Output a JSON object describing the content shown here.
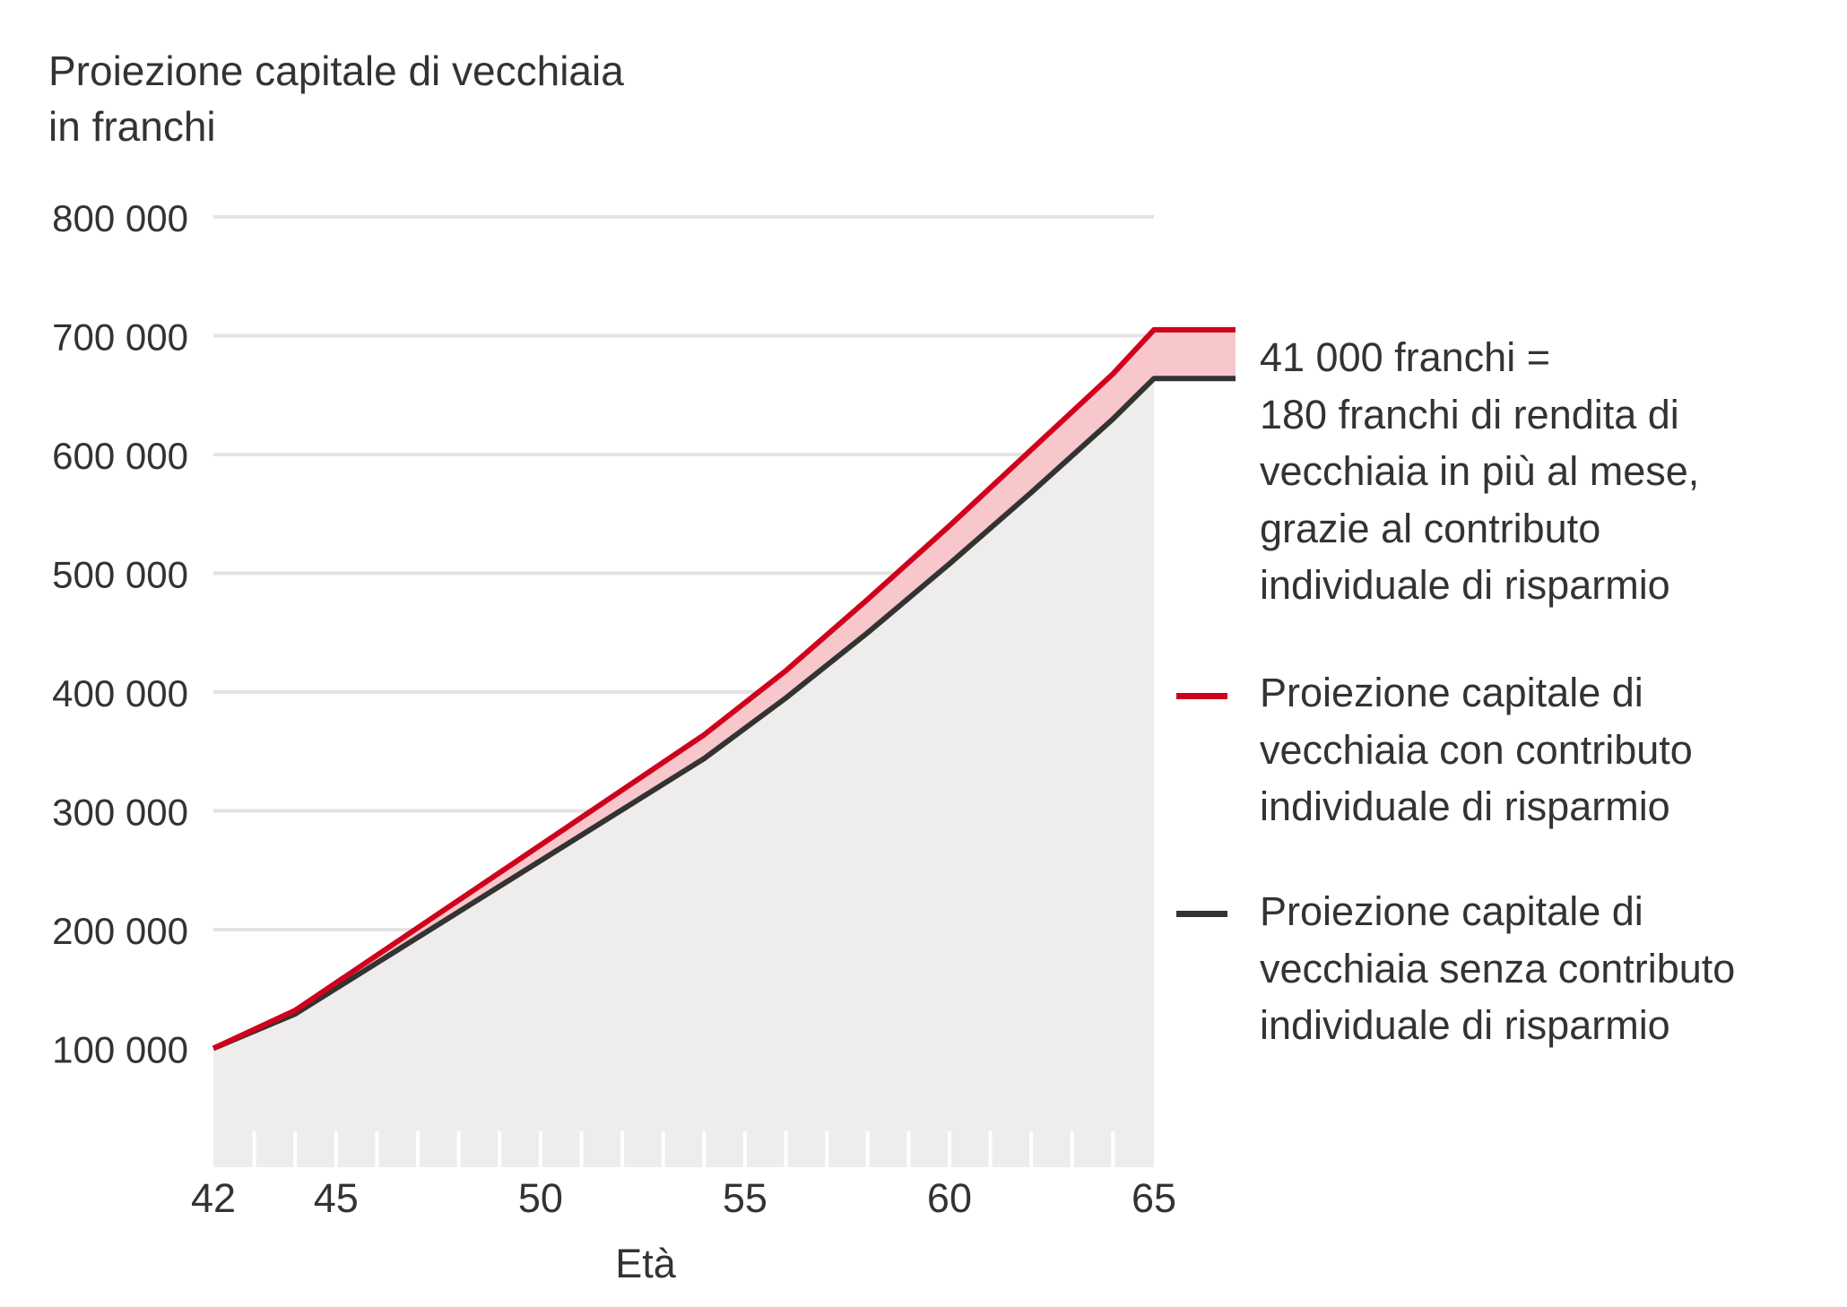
{
  "title_line1": "Proiezione capitale di vecchiaia",
  "title_line2": "in franchi",
  "annotation": [
    "41 000 franchi =",
    "180 franchi di rendita di",
    "vecchiaia in più al mese,",
    "grazie al contributo",
    "individuale di risparmio"
  ],
  "colors": {
    "with_contribution": "#d0021b",
    "without_contribution": "#333333",
    "difference_fill": "#f7c7cb",
    "base_fill": "#efedeb",
    "grid": "#e3e3e3"
  },
  "chart_data": {
    "type": "area",
    "xlabel": "Età",
    "ylabel": "Proiezione capitale di vecchiaia in franchi",
    "xlim": [
      42,
      65
    ],
    "ylim": [
      0,
      800000
    ],
    "x_ticks": [
      42,
      45,
      50,
      55,
      60,
      65
    ],
    "y_ticks": [
      100000,
      200000,
      300000,
      400000,
      500000,
      600000,
      700000,
      800000
    ],
    "y_tick_labels": [
      "100 000",
      "200 000",
      "300 000",
      "400 000",
      "500 000",
      "600 000",
      "700 000",
      "800 000"
    ],
    "grid": true,
    "legend_position": "right",
    "x": [
      42,
      44,
      54,
      56,
      58,
      60,
      62,
      64,
      65
    ],
    "series": [
      {
        "name": "Proiezione capitale di vecchiaia con contributo individuale di risparmio",
        "values": [
          100000,
          132000,
          364000,
          418000,
          478000,
          540000,
          604000,
          668000,
          705000
        ]
      },
      {
        "name": "Proiezione capitale di vecchiaia senza contributo individuale di risparmio",
        "values": [
          100000,
          129000,
          344000,
          395000,
          450000,
          508000,
          568000,
          630000,
          664000
        ]
      }
    ]
  }
}
